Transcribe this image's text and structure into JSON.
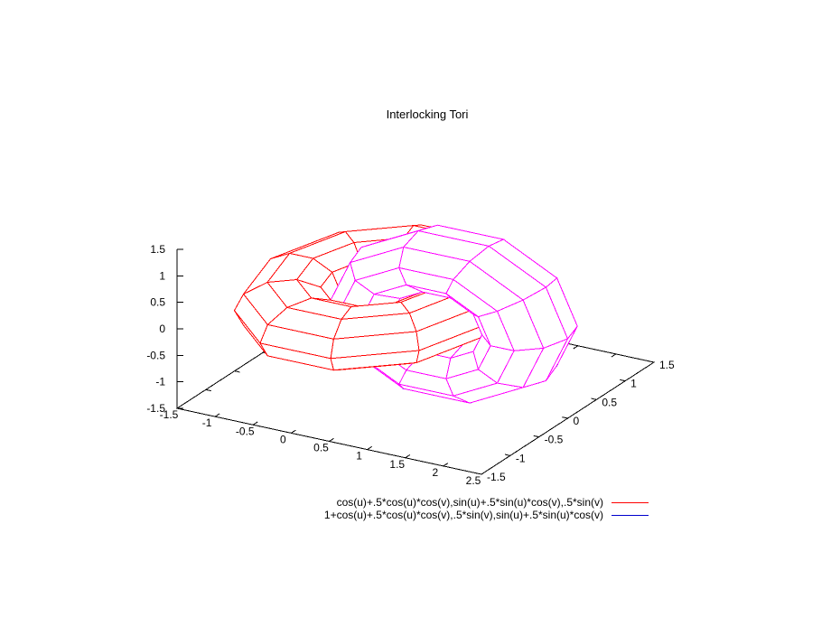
{
  "title": "Interlocking Tori",
  "chart_data": {
    "type": "surface3d",
    "title": "Interlocking Tori",
    "hidden3d": true,
    "parametric": {
      "urange": [
        -3.14159265,
        3.14159265
      ],
      "vrange": [
        -3.14159265,
        3.14159265
      ],
      "isosamples": [
        11,
        11
      ]
    },
    "axes": {
      "xrange": [
        -1.5,
        2.5
      ],
      "yrange": [
        -1.5,
        1.5
      ],
      "zrange": [
        -1.5,
        1.5
      ],
      "xticks": [
        -1.5,
        -1,
        -0.5,
        0,
        0.5,
        1,
        1.5,
        2,
        2.5
      ],
      "yticks": [
        -1.5,
        -1,
        -0.5,
        0,
        0.5,
        1,
        1.5
      ],
      "zticks": [
        -1.5,
        -1,
        -0.5,
        0,
        0.5,
        1,
        1.5
      ]
    },
    "series": [
      {
        "label": "cos(u)+.5*cos(u)*cos(v),sin(u)+.5*sin(u)*cos(v),.5*sin(v)",
        "axis": "z",
        "center": [
          0,
          0,
          0
        ],
        "R": 1,
        "r": 0.5,
        "color": "#ff0000",
        "hidden_color": "#00c000"
      },
      {
        "label": "1+cos(u)+.5*cos(u)*cos(v),.5*sin(v),sin(u)+.5*sin(u)*cos(v)",
        "axis": "y",
        "center": [
          1,
          0,
          0
        ],
        "R": 1,
        "r": 0.5,
        "color": "#0000cd",
        "hidden_color": "#ff00ff"
      }
    ],
    "colors": {
      "axis": "#000000",
      "text": "#000000",
      "background": "#ffffff"
    }
  }
}
